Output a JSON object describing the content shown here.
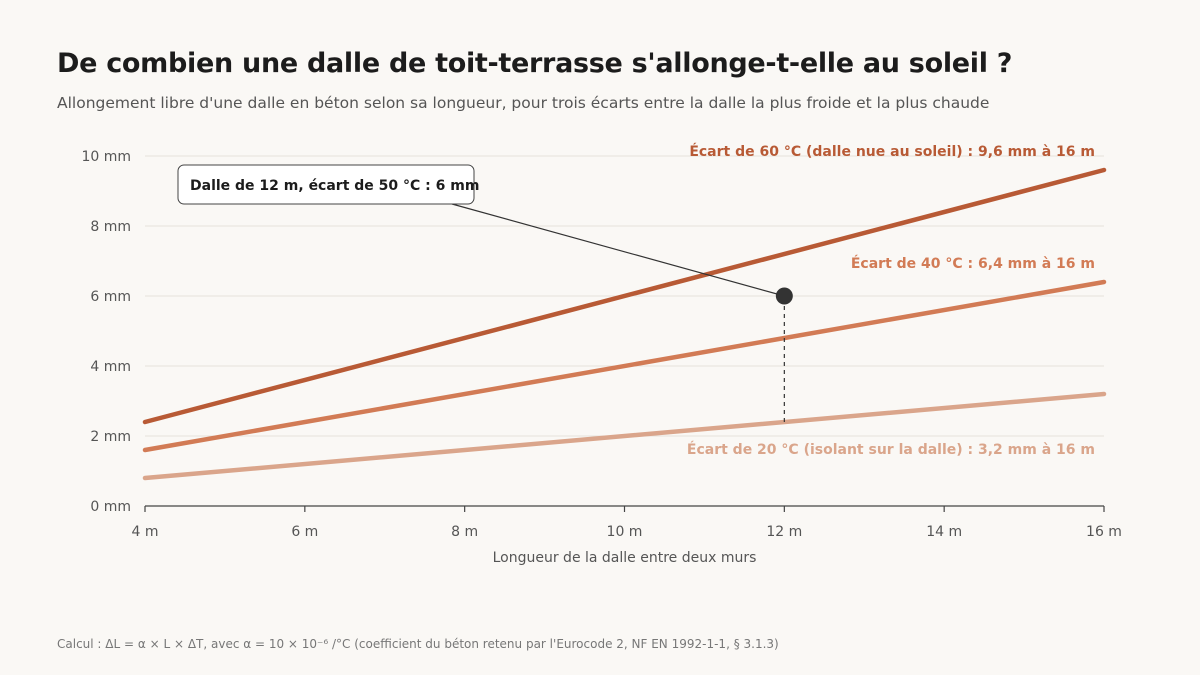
{
  "title": "De combien une dalle de toit-terrasse s'allonge-t-elle au soleil ?",
  "subtitle": "Allongement libre d'une dalle en béton selon sa longueur, pour trois écarts entre la dalle la plus froide et la plus chaude",
  "footnote": "Calcul : ΔL = α × L × ΔT, avec α = 10 × 10⁻⁶ /°C (coefficient du béton retenu par l'Eurocode 2, NF EN 1992-1-1, § 3.1.3)",
  "chart_data": {
    "type": "line",
    "xlabel": "Longueur de la dalle entre deux murs",
    "ylabel": "",
    "xlim": [
      4,
      16
    ],
    "ylim": [
      0,
      10
    ],
    "x_ticks": [
      4,
      6,
      8,
      10,
      12,
      14,
      16
    ],
    "x_tick_labels": [
      "4 m",
      "6 m",
      "8 m",
      "10 m",
      "12 m",
      "14 m",
      "16 m"
    ],
    "y_ticks": [
      0,
      2,
      4,
      6,
      8,
      10
    ],
    "y_tick_labels": [
      "0 mm",
      "2 mm",
      "4 mm",
      "6 mm",
      "8 mm",
      "10 mm"
    ],
    "grid": true,
    "series": [
      {
        "label": "Écart de 60 °C (dalle nue au soleil) : 9,6 mm à 16 m",
        "color": "#b85a35",
        "x": [
          4,
          16
        ],
        "y": [
          2.4,
          9.6
        ]
      },
      {
        "label": "Écart de 40 °C : 6,4 mm à 16 m",
        "color": "#d27b55",
        "x": [
          4,
          16
        ],
        "y": [
          1.6,
          6.4
        ]
      },
      {
        "label": "Écart de 20 °C (isolant sur la dalle) : 3,2 mm à 16 m",
        "color": "#daa58b",
        "x": [
          4,
          16
        ],
        "y": [
          0.8,
          3.2
        ]
      }
    ],
    "annotation": {
      "text": "Dalle de 12 m, écart de 50 °C : 6 mm",
      "x": 12,
      "y": 6
    }
  }
}
